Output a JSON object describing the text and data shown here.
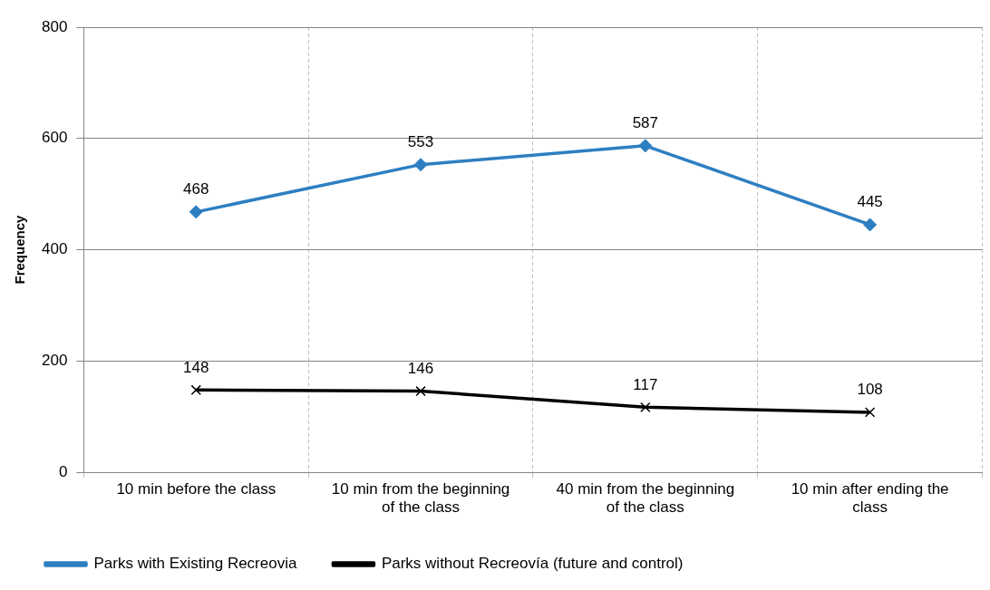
{
  "chart_data": {
    "type": "line",
    "ylabel": "Frequency",
    "categories": [
      "10 min before the class",
      "10 min from the beginning of the class",
      "40 min from the beginning of the class",
      "10 min after ending the class"
    ],
    "series": [
      {
        "name": "Parks with Existing Recreovia",
        "color": "#2e7fc2",
        "marker": "diamond",
        "values": [
          468,
          553,
          587,
          445
        ]
      },
      {
        "name": "Parks without Recreovía (future and control)",
        "color": "#000000",
        "marker": "cross",
        "values": [
          148,
          146,
          117,
          108
        ]
      }
    ],
    "ylim": [
      0,
      800
    ],
    "yticks": [
      0,
      200,
      400,
      600,
      800
    ],
    "grid": true,
    "legend": "bottom",
    "data_labels": true
  }
}
